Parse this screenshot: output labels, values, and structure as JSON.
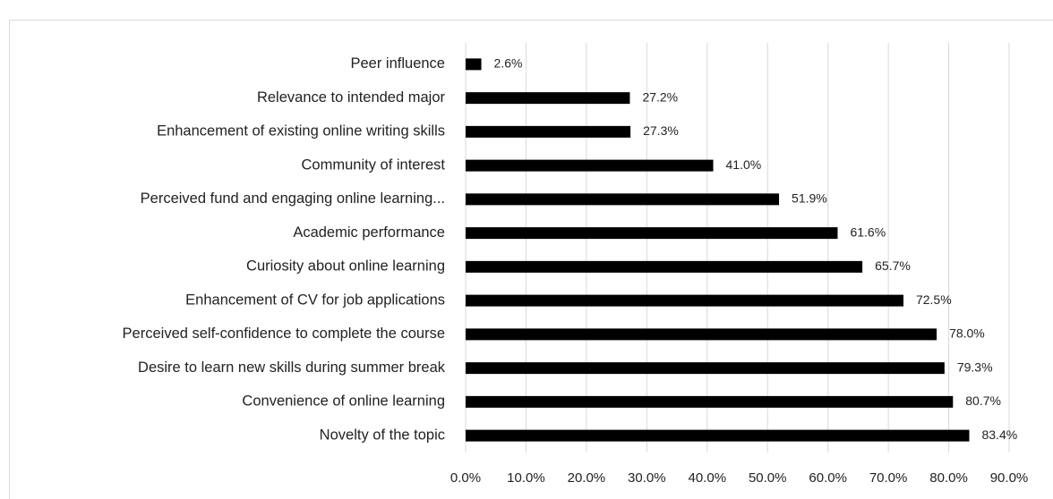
{
  "chart_data": {
    "type": "barh",
    "categories": [
      "Peer influence",
      "Relevance to intended major",
      "Enhancement of existing online writing skills",
      "Community of interest",
      "Perceived fund and engaging online learning...",
      "Academic performance",
      "Curiosity about online learning",
      "Enhancement of CV for job applications",
      "Perceived self-confidence to complete the course",
      "Desire to learn new skills during summer break",
      "Convenience of online learning",
      "Novelty of the topic"
    ],
    "values": [
      2.6,
      27.2,
      27.3,
      41.0,
      51.9,
      61.6,
      65.7,
      72.5,
      78.0,
      79.3,
      80.7,
      83.4
    ],
    "value_labels": [
      "2.6%",
      "27.2%",
      "27.3%",
      "41.0%",
      "51.9%",
      "61.6%",
      "65.7%",
      "72.5%",
      "78.0%",
      "79.3%",
      "80.7%",
      "83.4%"
    ],
    "color": "#000000",
    "xlim": [
      0,
      90
    ],
    "xticks": [
      {
        "value": 0,
        "label": "0.0%"
      },
      {
        "value": 10,
        "label": "10.0%"
      },
      {
        "value": 20,
        "label": "20.0%"
      },
      {
        "value": 30,
        "label": "30.0%"
      },
      {
        "value": 40,
        "label": "40.0%"
      },
      {
        "value": 50,
        "label": "50.0%"
      },
      {
        "value": 60,
        "label": "60.0%"
      },
      {
        "value": 70,
        "label": "70.0%"
      },
      {
        "value": 80,
        "label": "80.0%"
      },
      {
        "value": 90,
        "label": "90.0%"
      }
    ],
    "grid": true
  }
}
